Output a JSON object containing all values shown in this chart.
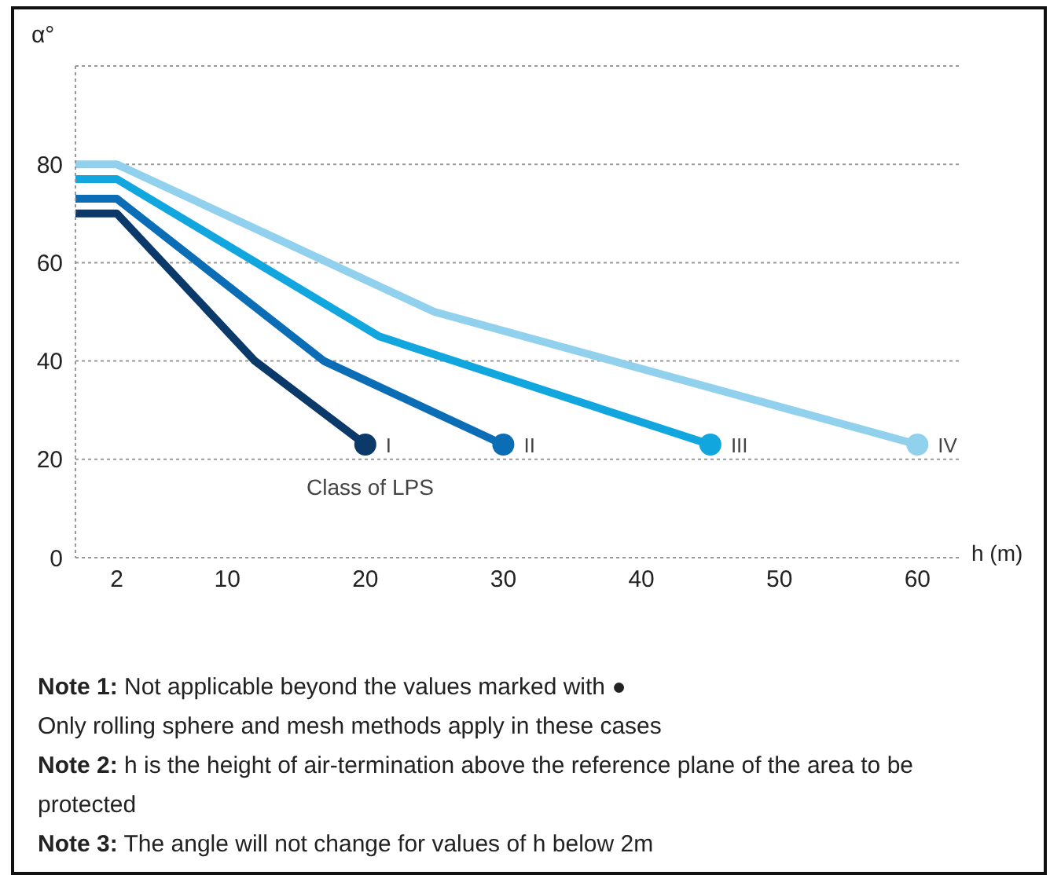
{
  "chart_data": {
    "type": "line",
    "xlabel": "h (m)",
    "ylabel": "α°",
    "legend_title": "Class of LPS",
    "xlim": [
      -1,
      63
    ],
    "xticks": [
      2,
      10,
      20,
      30,
      40,
      50,
      60
    ],
    "ylim": [
      0,
      100
    ],
    "yticks": [
      0,
      20,
      40,
      60,
      80
    ],
    "grid": "y",
    "line_style": "solid",
    "series": [
      {
        "name": "I",
        "color": "#0b3a6a",
        "x": [
          -1,
          2,
          12,
          20
        ],
        "values": [
          70,
          70,
          40,
          23
        ]
      },
      {
        "name": "II",
        "color": "#0a6db5",
        "x": [
          -1,
          2,
          17,
          30
        ],
        "values": [
          73,
          73,
          40,
          23
        ]
      },
      {
        "name": "III",
        "color": "#12a6df",
        "x": [
          -1,
          2,
          21,
          45
        ],
        "values": [
          77,
          77,
          45,
          23
        ]
      },
      {
        "name": "IV",
        "color": "#92d1ee",
        "x": [
          -1,
          2,
          25,
          60
        ],
        "values": [
          80,
          80,
          50,
          23
        ]
      }
    ],
    "annotations": [
      "Note 1: Not applicable beyond the values marked with ●",
      "Only rolling sphere and mesh methods apply in these cases",
      "Note 2: h is the height of air-termination above the reference plane of the area to be protected",
      "Note 3: The angle will not change for values of h below 2m"
    ]
  }
}
